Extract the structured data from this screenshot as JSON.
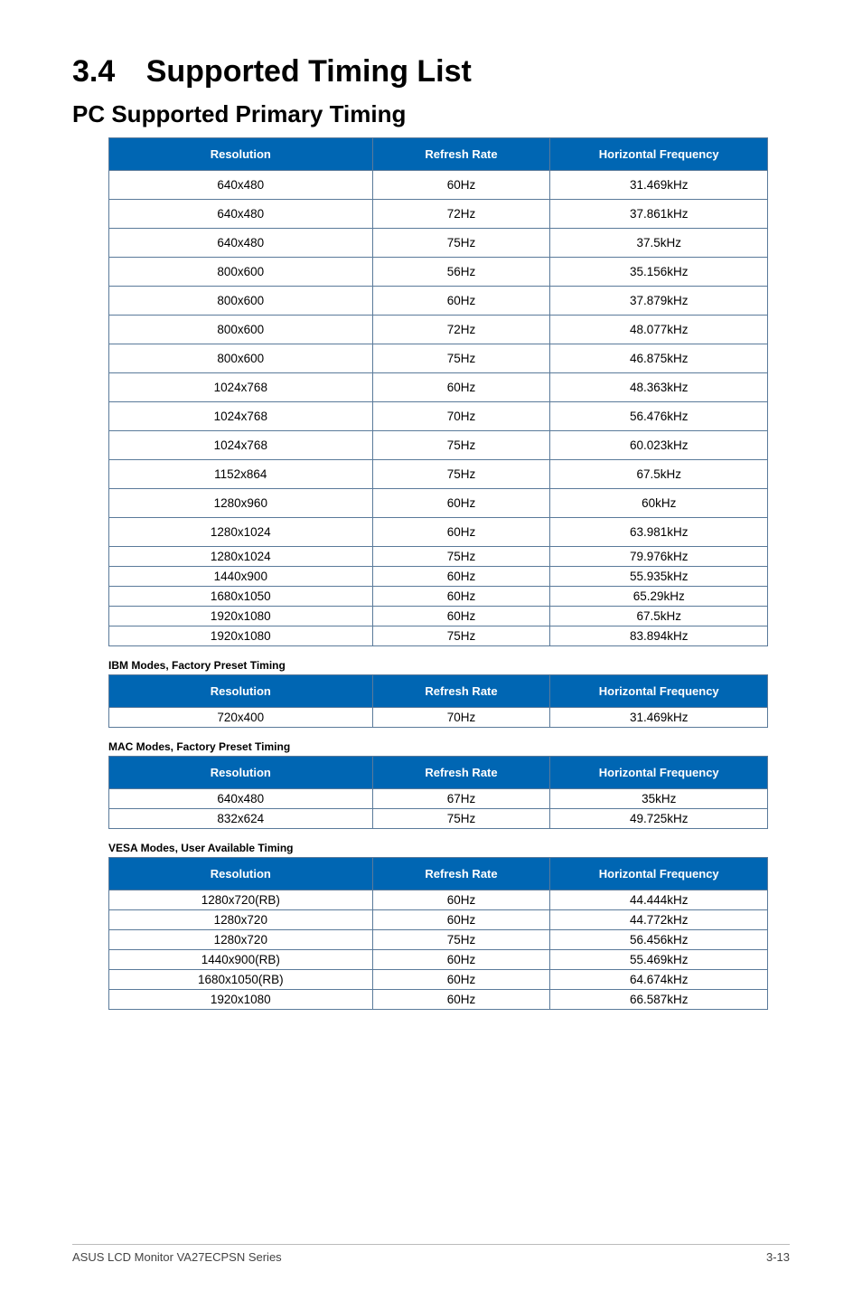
{
  "header": {
    "section_number": "3.4",
    "main_title": "Supported Timing List",
    "sub_title": "PC Supported Primary Timing"
  },
  "columns": {
    "resolution": "Resolution",
    "refresh": "Refresh Rate",
    "hfreq": "Horizontal Frequency"
  },
  "primary_timing": [
    {
      "res": "640x480",
      "ref": "60Hz",
      "hf": "31.469kHz"
    },
    {
      "res": "640x480",
      "ref": "72Hz",
      "hf": "37.861kHz"
    },
    {
      "res": "640x480",
      "ref": "75Hz",
      "hf": "37.5kHz"
    },
    {
      "res": "800x600",
      "ref": "56Hz",
      "hf": "35.156kHz"
    },
    {
      "res": "800x600",
      "ref": "60Hz",
      "hf": "37.879kHz"
    },
    {
      "res": "800x600",
      "ref": "72Hz",
      "hf": "48.077kHz"
    },
    {
      "res": "800x600",
      "ref": "75Hz",
      "hf": "46.875kHz"
    },
    {
      "res": "1024x768",
      "ref": "60Hz",
      "hf": "48.363kHz"
    },
    {
      "res": "1024x768",
      "ref": "70Hz",
      "hf": "56.476kHz"
    },
    {
      "res": "1024x768",
      "ref": "75Hz",
      "hf": "60.023kHz"
    },
    {
      "res": "1152x864",
      "ref": "75Hz",
      "hf": "67.5kHz"
    },
    {
      "res": "1280x960",
      "ref": "60Hz",
      "hf": "60kHz"
    },
    {
      "res": "1280x1024",
      "ref": "60Hz",
      "hf": "63.981kHz"
    },
    {
      "res": "1280x1024",
      "ref": "75Hz",
      "hf": "79.976kHz"
    },
    {
      "res": "1440x900",
      "ref": "60Hz",
      "hf": "55.935kHz"
    },
    {
      "res": "1680x1050",
      "ref": "60Hz",
      "hf": "65.29kHz"
    },
    {
      "res": "1920x1080",
      "ref": "60Hz",
      "hf": "67.5kHz"
    },
    {
      "res": "1920x1080",
      "ref": "75Hz",
      "hf": "83.894kHz"
    }
  ],
  "ibm_caption": "IBM Modes, Factory Preset Timing",
  "ibm_timing": [
    {
      "res": "720x400",
      "ref": "70Hz",
      "hf": "31.469kHz"
    }
  ],
  "mac_caption": "MAC Modes, Factory Preset Timing",
  "mac_timing": [
    {
      "res": "640x480",
      "ref": "67Hz",
      "hf": "35kHz"
    },
    {
      "res": "832x624",
      "ref": "75Hz",
      "hf": "49.725kHz"
    }
  ],
  "vesa_caption": "VESA Modes, User Available Timing",
  "vesa_timing": [
    {
      "res": "1280x720(RB)",
      "ref": "60Hz",
      "hf": "44.444kHz"
    },
    {
      "res": "1280x720",
      "ref": "60Hz",
      "hf": "44.772kHz"
    },
    {
      "res": "1280x720",
      "ref": "75Hz",
      "hf": "56.456kHz"
    },
    {
      "res": "1440x900(RB)",
      "ref": "60Hz",
      "hf": "55.469kHz"
    },
    {
      "res": "1680x1050(RB)",
      "ref": "60Hz",
      "hf": "64.674kHz"
    },
    {
      "res": "1920x1080",
      "ref": "60Hz",
      "hf": "66.587kHz"
    }
  ],
  "footer": {
    "left": "ASUS LCD Monitor VA27ECPSN Series",
    "right": "3-13"
  },
  "style": {
    "header_bg": "#0066b3",
    "header_fg": "#ffffff",
    "border_color": "#5a7a9a"
  }
}
